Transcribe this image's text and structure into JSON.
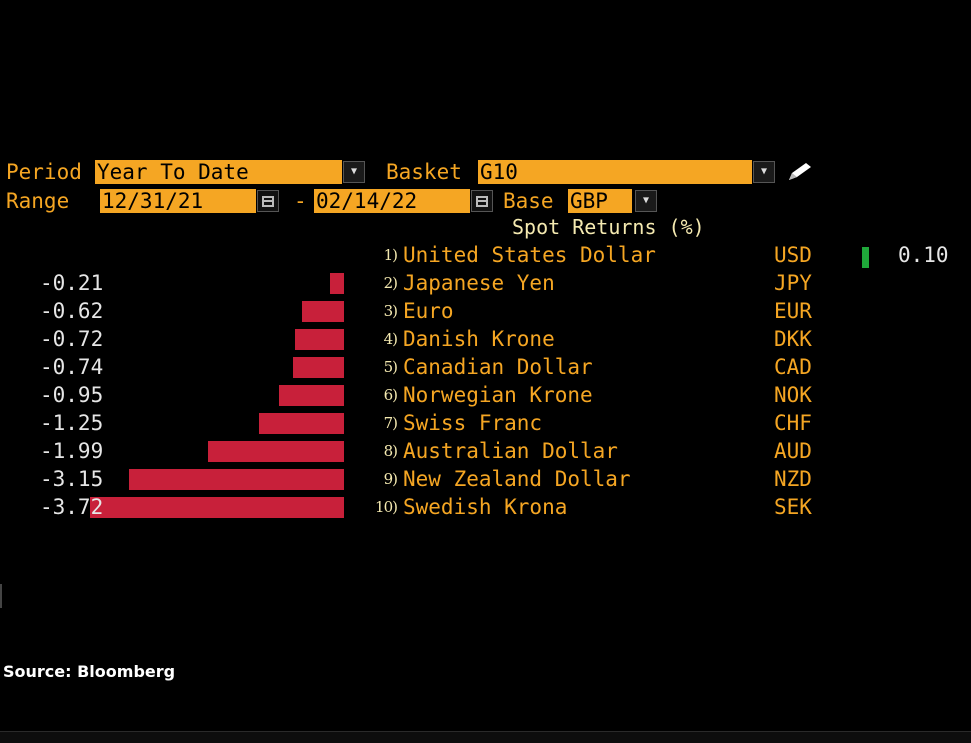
{
  "controls": {
    "period_label": "Period",
    "period_value": "Year To Date",
    "basket_label": "Basket",
    "basket_value": "G10",
    "range_label": "Range",
    "range_start": "12/31/21",
    "range_sep": "-",
    "range_end": "02/14/22",
    "base_label": "Base",
    "base_value": "GBP"
  },
  "chart_data": {
    "type": "bar",
    "title": "Spot Returns (%)",
    "orientation": "horizontal",
    "rows": [
      {
        "rank": "1)",
        "name": "United States Dollar",
        "code": "USD",
        "value": 0.1,
        "label": "0.10"
      },
      {
        "rank": "2)",
        "name": "Japanese Yen",
        "code": "JPY",
        "value": -0.21,
        "label": "-0.21"
      },
      {
        "rank": "3)",
        "name": "Euro",
        "code": "EUR",
        "value": -0.62,
        "label": "-0.62"
      },
      {
        "rank": "4)",
        "name": "Danish Krone",
        "code": "DKK",
        "value": -0.72,
        "label": "-0.72"
      },
      {
        "rank": "5)",
        "name": "Canadian Dollar",
        "code": "CAD",
        "value": -0.74,
        "label": "-0.74"
      },
      {
        "rank": "6)",
        "name": "Norwegian Krone",
        "code": "NOK",
        "value": -0.95,
        "label": "-0.95"
      },
      {
        "rank": "7)",
        "name": "Swiss Franc",
        "code": "CHF",
        "value": -1.25,
        "label": "-1.25"
      },
      {
        "rank": "8)",
        "name": "Australian Dollar",
        "code": "AUD",
        "value": -1.99,
        "label": "-1.99"
      },
      {
        "rank": "9)",
        "name": "New Zealand Dollar",
        "code": "NZD",
        "value": -3.15,
        "label": "-3.15"
      },
      {
        "rank": "10)",
        "name": "Swedish Krona",
        "code": "SEK",
        "value": -3.72,
        "label": "-3.72"
      }
    ],
    "colors": {
      "negative": "#c8203a",
      "positive": "#1fa83a"
    }
  },
  "footer": {
    "source": "Source: Bloomberg"
  },
  "icons": {
    "dropdown": "chevron-down-icon",
    "calendar": "calendar-icon",
    "edit": "pencil-icon"
  }
}
